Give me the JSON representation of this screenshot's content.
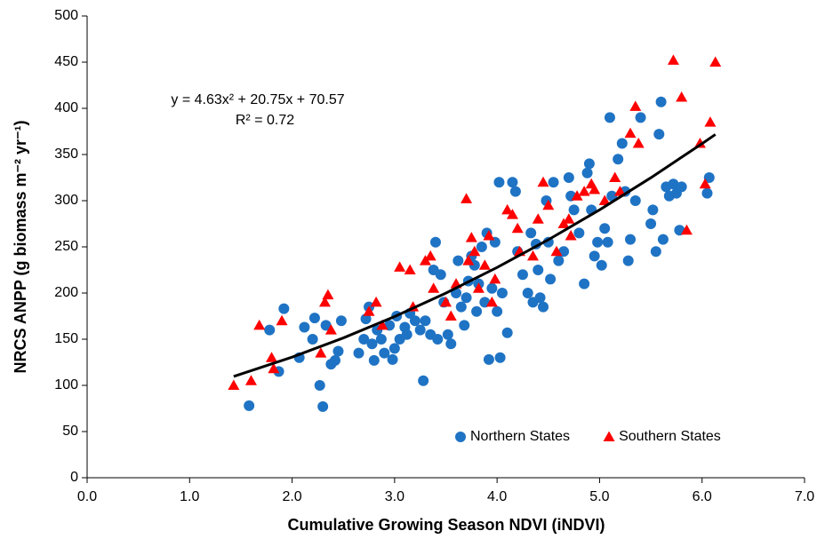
{
  "chart_data": {
    "type": "scatter",
    "x_label": "Cumulative Growing Season NDVI (iNDVI)",
    "y_label": "NRCS ANPP (g biomass m⁻² yr⁻¹)",
    "annotations": [
      "y = 4.63x² + 20.75x + 70.57",
      "R² = 0.72"
    ],
    "xlim": [
      0,
      7
    ],
    "ylim": [
      0,
      500
    ],
    "xticks": [
      {
        "value": 0,
        "label": "0.0"
      },
      {
        "value": 1,
        "label": "1.0"
      },
      {
        "value": 2,
        "label": "2.0"
      },
      {
        "value": 3,
        "label": "3.0"
      },
      {
        "value": 4,
        "label": "4.0"
      },
      {
        "value": 5,
        "label": "5.0"
      },
      {
        "value": 6,
        "label": "6.0"
      },
      {
        "value": 7,
        "label": "7.0"
      }
    ],
    "yticks": [
      0,
      50,
      100,
      150,
      200,
      250,
      300,
      350,
      400,
      450,
      500
    ],
    "grid": false,
    "legend": "lower right",
    "series": [
      {
        "name": "Northern States",
        "color": "#1f73c4",
        "marker": "circle",
        "x": [
          1.58,
          1.78,
          1.87,
          1.92,
          2.07,
          2.12,
          2.2,
          2.22,
          2.27,
          2.3,
          2.33,
          2.38,
          2.42,
          2.45,
          2.48,
          2.65,
          2.7,
          2.72,
          2.75,
          2.78,
          2.8,
          2.83,
          2.87,
          2.9,
          2.95,
          2.98,
          3.0,
          3.02,
          3.05,
          3.1,
          3.12,
          3.15,
          3.2,
          3.25,
          3.28,
          3.3,
          3.35,
          3.38,
          3.4,
          3.42,
          3.45,
          3.48,
          3.52,
          3.55,
          3.6,
          3.62,
          3.65,
          3.68,
          3.7,
          3.72,
          3.75,
          3.78,
          3.8,
          3.82,
          3.85,
          3.88,
          3.9,
          3.92,
          3.95,
          3.98,
          4.0,
          4.02,
          4.03,
          4.05,
          4.1,
          4.15,
          4.18,
          4.2,
          4.25,
          4.3,
          4.33,
          4.35,
          4.38,
          4.4,
          4.42,
          4.45,
          4.48,
          4.5,
          4.52,
          4.55,
          4.6,
          4.65,
          4.7,
          4.72,
          4.75,
          4.8,
          4.85,
          4.88,
          4.9,
          4.92,
          4.95,
          4.98,
          5.02,
          5.05,
          5.08,
          5.1,
          5.12,
          5.18,
          5.22,
          5.25,
          5.28,
          5.3,
          5.35,
          5.4,
          5.5,
          5.52,
          5.55,
          5.58,
          5.6,
          5.62,
          5.65,
          5.68,
          5.72,
          5.75,
          5.78,
          5.8,
          6.05,
          6.07
        ],
        "values": [
          78,
          160,
          115,
          183,
          130,
          163,
          150,
          173,
          100,
          77,
          165,
          123,
          127,
          137,
          170,
          135,
          150,
          172,
          185,
          145,
          127,
          160,
          150,
          135,
          165,
          128,
          140,
          175,
          150,
          163,
          155,
          178,
          170,
          160,
          105,
          170,
          155,
          225,
          255,
          150,
          220,
          190,
          155,
          145,
          200,
          235,
          185,
          165,
          195,
          213,
          240,
          230,
          180,
          210,
          250,
          190,
          265,
          128,
          205,
          255,
          180,
          320,
          130,
          200,
          157,
          320,
          310,
          245,
          220,
          200,
          265,
          190,
          253,
          225,
          195,
          185,
          300,
          255,
          215,
          320,
          235,
          245,
          325,
          305,
          290,
          265,
          210,
          330,
          340,
          290,
          240,
          255,
          230,
          270,
          255,
          390,
          305,
          345,
          362,
          310,
          235,
          258,
          300,
          390,
          275,
          290,
          245,
          372,
          407,
          258,
          315,
          305,
          318,
          308,
          268,
          315,
          308,
          325
        ]
      },
      {
        "name": "Southern States",
        "color": "#ff0000",
        "marker": "triangle",
        "x": [
          1.43,
          1.6,
          1.68,
          1.8,
          1.82,
          1.9,
          2.28,
          2.32,
          2.35,
          2.38,
          2.75,
          2.82,
          2.88,
          3.05,
          3.15,
          3.18,
          3.3,
          3.35,
          3.38,
          3.5,
          3.55,
          3.6,
          3.7,
          3.72,
          3.75,
          3.78,
          3.82,
          3.88,
          3.92,
          3.95,
          3.98,
          4.1,
          4.15,
          4.2,
          4.22,
          4.35,
          4.4,
          4.45,
          4.5,
          4.58,
          4.65,
          4.7,
          4.72,
          4.78,
          4.85,
          4.92,
          4.95,
          5.05,
          5.15,
          5.2,
          5.3,
          5.35,
          5.38,
          5.72,
          5.8,
          5.85,
          5.98,
          6.03,
          6.08,
          6.13
        ],
        "values": [
          100,
          105,
          165,
          130,
          118,
          170,
          135,
          190,
          198,
          160,
          180,
          190,
          165,
          228,
          225,
          185,
          235,
          240,
          205,
          190,
          175,
          210,
          302,
          235,
          260,
          245,
          205,
          230,
          262,
          190,
          215,
          290,
          285,
          270,
          245,
          240,
          280,
          320,
          295,
          245,
          275,
          280,
          262,
          305,
          310,
          318,
          312,
          300,
          325,
          310,
          373,
          402,
          362,
          452,
          412,
          268,
          362,
          318,
          385,
          450
        ]
      }
    ],
    "trendline": {
      "color": "#000000",
      "x": [
        1.43,
        2,
        2.5,
        3,
        3.5,
        4,
        4.5,
        5,
        5.5,
        6,
        6.13
      ],
      "values": [
        109.7,
        130.6,
        151.4,
        174.5,
        199.9,
        227.7,
        257.7,
        290.1,
        324.8,
        361.8,
        371.7
      ]
    }
  }
}
